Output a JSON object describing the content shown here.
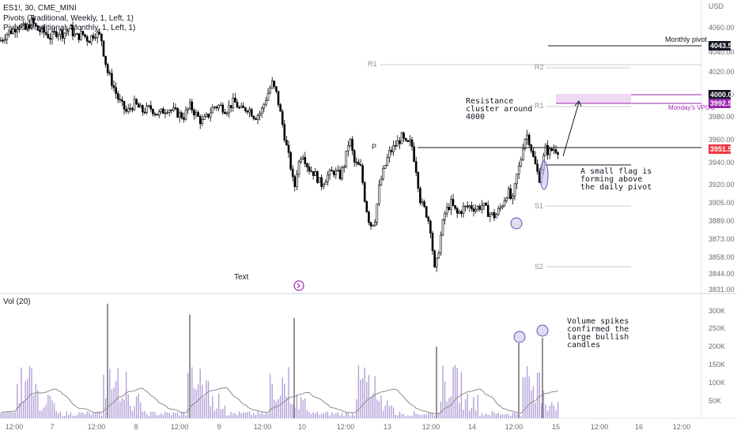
{
  "header": {
    "symbol_line": "ES1!, 30, CME_MINI",
    "pivot_weekly": "Pivots (Traditional, Weekly, 1, Left, 1)",
    "pivot_monthly": "Pivots (Traditional, Monthly, 1, Left, 1)"
  },
  "currency": "USD",
  "price_axis": {
    "ticks": [
      "4060.00",
      "4040.00",
      "4020.00",
      "4000.00",
      "3980.00",
      "3960.00",
      "3940.00",
      "3920.00",
      "3905.00",
      "3889.00",
      "3873.00",
      "3858.00",
      "3844.00",
      "3831.00"
    ]
  },
  "volume_axis": {
    "label": "Vol (20)",
    "ticks": [
      "300K",
      "250K",
      "200K",
      "150K",
      "100K",
      "50K"
    ]
  },
  "time_axis": {
    "ticks": [
      "12:00",
      "7",
      "12:00",
      "8",
      "12:00",
      "9",
      "12:00",
      "10",
      "12:00",
      "13",
      "12:00",
      "14",
      "12:00",
      "15",
      "12:00",
      "16",
      "12:00"
    ]
  },
  "price_tags": {
    "monthly_pivot": "4043.50",
    "vpoc_high": "4000.00",
    "vpoc_low": "3992.50",
    "last_price": "3951.50"
  },
  "level_labels": {
    "r1_weekly": "R1",
    "r2": "R2",
    "r1": "R1",
    "p": "P",
    "s1": "S1",
    "s2": "S2",
    "monthly_pivot": "Monthly pivot",
    "vpoc": "Monday's VPOC"
  },
  "annotations": {
    "resistance": [
      "Resistance",
      "cluster around",
      "4000"
    ],
    "flag": [
      "A small flag is",
      "forming above",
      "the daily pivot"
    ],
    "volume": [
      "Volume spikes",
      "confirmed the",
      "large bullish",
      "candles"
    ],
    "text": "Text"
  },
  "colors": {
    "candle": "#000000",
    "volume_bar": "#b3a0d8",
    "volume_spike": "#7a7a7a",
    "volume_ma": "#8c8c8c",
    "vpoc": "#9c27b0",
    "vpoc_zone": "#efd8f3",
    "tag_dark": "#131722"
  },
  "chart_data": [
    {
      "type": "candlestick",
      "title": "ES1!, 30, CME_MINI",
      "ylabel": "USD",
      "ylim": [
        3831,
        4068
      ],
      "x": [
        "12:00",
        "7",
        "12:00",
        "8",
        "12:00",
        "9",
        "12:00",
        "10",
        "12:00",
        "13",
        "12:00",
        "14",
        "12:00",
        "15",
        "12:00",
        "16",
        "12:00"
      ],
      "levels": [
        {
          "name": "Monthly pivot",
          "value": 4043.5
        },
        {
          "name": "R2",
          "value": 4025
        },
        {
          "name": "Monday's VPOC",
          "value": 3992.5
        },
        {
          "name": "R1",
          "value": 3990
        },
        {
          "name": "P",
          "value": 3955
        },
        {
          "name": "S1",
          "value": 3903
        },
        {
          "name": "S2",
          "value": 3850
        }
      ],
      "last": 3951.5,
      "close_path": [
        [
          0,
          4049
        ],
        [
          8,
          4055
        ],
        [
          16,
          4058
        ],
        [
          24,
          4063
        ],
        [
          32,
          4058
        ],
        [
          40,
          4065
        ],
        [
          48,
          4058
        ],
        [
          56,
          4056
        ],
        [
          64,
          4052
        ],
        [
          72,
          4057
        ],
        [
          80,
          4055
        ],
        [
          88,
          4060
        ],
        [
          96,
          4052
        ],
        [
          104,
          4055
        ],
        [
          112,
          4050
        ],
        [
          120,
          4056
        ],
        [
          128,
          4052
        ],
        [
          132,
          4035
        ],
        [
          136,
          4020
        ],
        [
          142,
          4010
        ],
        [
          150,
          3995
        ],
        [
          160,
          3984
        ],
        [
          170,
          3992
        ],
        [
          180,
          3985
        ],
        [
          190,
          3988
        ],
        [
          200,
          3982
        ],
        [
          212,
          3988
        ],
        [
          222,
          3984
        ],
        [
          232,
          3980
        ],
        [
          240,
          3990
        ],
        [
          248,
          3982
        ],
        [
          255,
          3975
        ],
        [
          262,
          3980
        ],
        [
          270,
          3989
        ],
        [
          278,
          3990
        ],
        [
          286,
          3986
        ],
        [
          296,
          3994
        ],
        [
          304,
          3986
        ],
        [
          314,
          3988
        ],
        [
          322,
          3980
        ],
        [
          330,
          3984
        ],
        [
          338,
          4000
        ],
        [
          344,
          4010
        ],
        [
          350,
          4000
        ],
        [
          356,
          3978
        ],
        [
          362,
          3955
        ],
        [
          368,
          3935
        ],
        [
          372,
          3915
        ],
        [
          376,
          3935
        ],
        [
          382,
          3950
        ],
        [
          390,
          3935
        ],
        [
          398,
          3930
        ],
        [
          406,
          3920
        ],
        [
          414,
          3928
        ],
        [
          422,
          3932
        ],
        [
          430,
          3928
        ],
        [
          436,
          3940
        ],
        [
          442,
          3962
        ],
        [
          448,
          3940
        ],
        [
          456,
          3935
        ],
        [
          462,
          3905
        ],
        [
          468,
          3885
        ],
        [
          474,
          3890
        ],
        [
          480,
          3920
        ],
        [
          486,
          3935
        ],
        [
          492,
          3948
        ],
        [
          500,
          3955
        ],
        [
          508,
          3962
        ],
        [
          514,
          3955
        ],
        [
          520,
          3958
        ],
        [
          526,
          3935
        ],
        [
          532,
          3905
        ],
        [
          538,
          3898
        ],
        [
          544,
          3885
        ],
        [
          550,
          3844
        ],
        [
          556,
          3870
        ],
        [
          562,
          3895
        ],
        [
          570,
          3905
        ],
        [
          578,
          3895
        ],
        [
          586,
          3900
        ],
        [
          594,
          3902
        ],
        [
          602,
          3900
        ],
        [
          610,
          3903
        ],
        [
          618,
          3896
        ],
        [
          626,
          3893
        ],
        [
          634,
          3902
        ],
        [
          642,
          3915
        ],
        [
          648,
          3905
        ],
        [
          654,
          3930
        ],
        [
          658,
          3940
        ],
        [
          662,
          3958
        ],
        [
          666,
          3965
        ],
        [
          670,
          3958
        ],
        [
          674,
          3945
        ],
        [
          678,
          3935
        ],
        [
          682,
          3925
        ],
        [
          686,
          3940
        ],
        [
          690,
          3952
        ],
        [
          694,
          3949
        ],
        [
          700,
          3952
        ],
        [
          706,
          3951
        ]
      ]
    },
    {
      "type": "bar",
      "title": "Vol (20)",
      "ylim": [
        0,
        330000
      ],
      "series": [
        {
          "name": "Vol (20)",
          "values": []
        }
      ],
      "spikes": [
        {
          "x": 136,
          "value": 320000
        },
        {
          "x": 240,
          "value": 290000
        },
        {
          "x": 372,
          "value": 280000
        },
        {
          "x": 656,
          "value": 210000
        },
        {
          "x": 686,
          "value": 225000
        },
        {
          "x": 552,
          "value": 200000
        }
      ]
    }
  ]
}
